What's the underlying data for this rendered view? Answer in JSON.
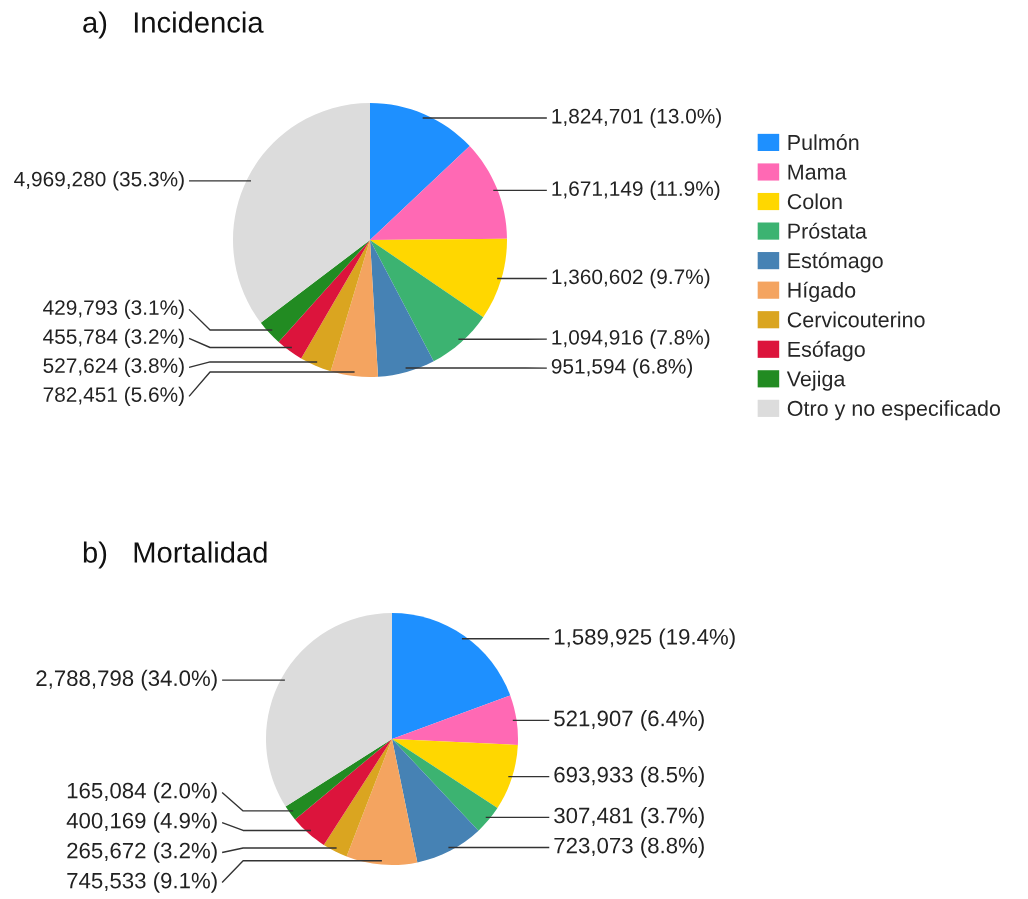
{
  "chart_data": [
    {
      "type": "pie",
      "title": "a)   Incidencia",
      "categories": [
        "Pulmón",
        "Mama",
        "Colon",
        "Próstata",
        "Estómago",
        "Hígado",
        "Cervicouterino",
        "Esófago",
        "Vejiga",
        "Otro y no especificado"
      ],
      "values": [
        1824701,
        1671149,
        1360602,
        1094916,
        951594,
        782451,
        527624,
        455784,
        429793,
        4969280
      ],
      "colors": [
        "#1e90ff",
        "#ff69b4",
        "#ffd700",
        "#3cb371",
        "#4682b4",
        "#f4a460",
        "#daa520",
        "#dc143c",
        "#228b22",
        "#dcdcdc"
      ],
      "value_labels": [
        "1,824,701 (13.0%)",
        "1,671,149 (11.9%)",
        "1,360,602 (9.7%)",
        "1,094,916 (7.8%)",
        "951,594 (6.8%)",
        "782,451 (5.6%)",
        "527,624 (3.8%)",
        "455,784 (3.2%)",
        "429,793 (3.1%)",
        "4,969,280 (35.3%)"
      ],
      "legend": "right"
    },
    {
      "type": "pie",
      "title": "b)   Mortalidad",
      "categories": [
        null,
        null,
        null,
        null,
        null,
        null,
        null,
        null,
        null,
        null
      ],
      "values": [
        1589925,
        521907,
        693933,
        307481,
        723073,
        745533,
        265672,
        400169,
        165084,
        2788798
      ],
      "colors": [
        "#1e90ff",
        "#ff69b4",
        "#ffd700",
        "#3cb371",
        "#4682b4",
        "#f4a460",
        "#daa520",
        "#dc143c",
        "#228b22",
        "#dcdcdc"
      ],
      "value_labels": [
        "1,589,925 (19.4%)",
        "521,907 (6.4%)",
        "693,933 (8.5%)",
        "307,481 (3.7%)",
        "723,073 (8.8%)",
        "745,533 (9.1%)",
        "265,672 (3.2%)",
        "400,169 (4.9%)",
        "165,084 (2.0%)",
        "2,788,798 (34.0%)"
      ]
    }
  ]
}
